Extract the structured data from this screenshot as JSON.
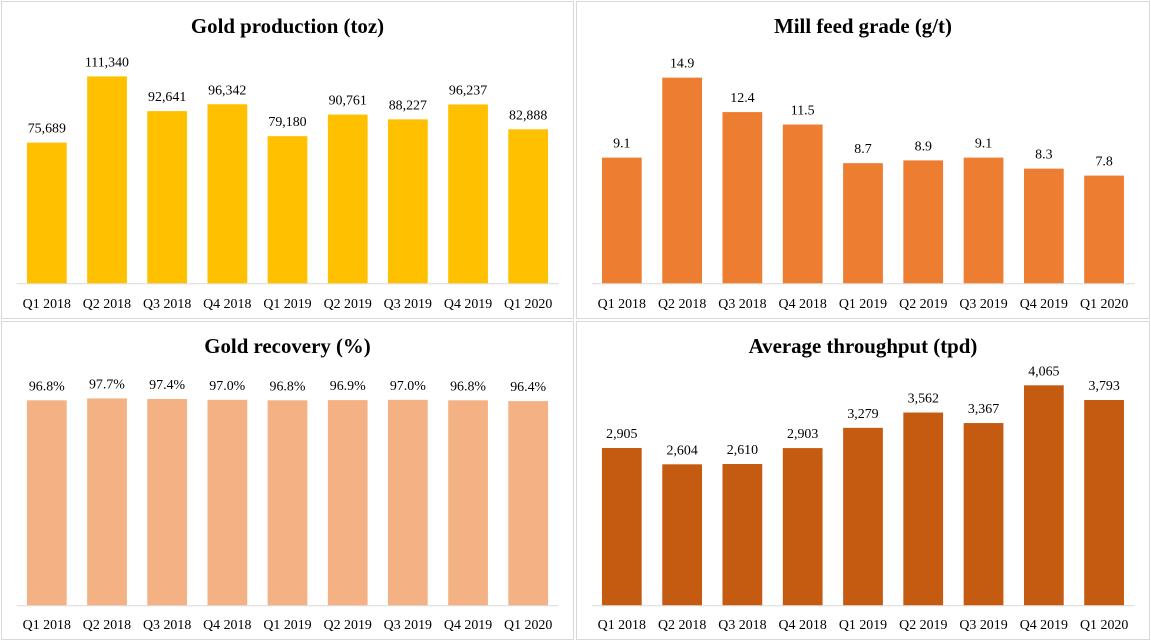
{
  "chart_data": [
    {
      "type": "bar",
      "title": "Gold production (toz)",
      "categories": [
        "Q1 2018",
        "Q2 2018",
        "Q3 2018",
        "Q4 2018",
        "Q1 2019",
        "Q2 2019",
        "Q3 2019",
        "Q4 2019",
        "Q1 2020"
      ],
      "values": [
        75689,
        111340,
        92641,
        96342,
        79180,
        90761,
        88227,
        96237,
        82888
      ],
      "labels": [
        "75,689",
        "111,340",
        "92,641",
        "96,342",
        "79,180",
        "90,761",
        "88,227",
        "96,237",
        "82,888"
      ],
      "color": "#FFC000",
      "ylim": [
        0,
        130000
      ],
      "grid": false,
      "legend": "none"
    },
    {
      "type": "bar",
      "title": "Mill feed grade (g/t)",
      "categories": [
        "Q1 2018",
        "Q2 2018",
        "Q3 2018",
        "Q4 2018",
        "Q1 2019",
        "Q2 2019",
        "Q3 2019",
        "Q4 2019",
        "Q1 2020"
      ],
      "values": [
        9.1,
        14.9,
        12.4,
        11.5,
        8.7,
        8.9,
        9.1,
        8.3,
        7.8
      ],
      "labels": [
        "9.1",
        "14.9",
        "12.4",
        "11.5",
        "8.7",
        "8.9",
        "9.1",
        "8.3",
        "7.8"
      ],
      "color": "#ED7D31",
      "ylim": [
        0,
        17.5
      ],
      "grid": false,
      "legend": "none"
    },
    {
      "type": "bar",
      "title": "Gold recovery (%)",
      "categories": [
        "Q1 2018",
        "Q2 2018",
        "Q3 2018",
        "Q4 2018",
        "Q1 2019",
        "Q2 2019",
        "Q3 2019",
        "Q4 2019",
        "Q1 2020"
      ],
      "values": [
        96.8,
        97.7,
        97.4,
        97.0,
        96.8,
        96.9,
        97.0,
        96.8,
        96.4
      ],
      "labels": [
        "96.8%",
        "97.7%",
        "97.4%",
        "97.0%",
        "96.8%",
        "96.9%",
        "97.0%",
        "96.8%",
        "96.4%"
      ],
      "color": "#F4B183",
      "ylim": [
        0,
        115
      ],
      "grid": false,
      "legend": "none"
    },
    {
      "type": "bar",
      "title": "Average throughput (tpd)",
      "categories": [
        "Q1 2018",
        "Q2 2018",
        "Q3 2018",
        "Q4 2018",
        "Q1 2019",
        "Q2 2019",
        "Q3 2019",
        "Q4 2019",
        "Q1 2020"
      ],
      "values": [
        2905,
        2604,
        2610,
        2903,
        3279,
        3562,
        3367,
        4065,
        3793
      ],
      "labels": [
        "2,905",
        "2,604",
        "2,610",
        "2,903",
        "3,279",
        "3,562",
        "3,367",
        "4,065",
        "3,793"
      ],
      "color": "#C55A11",
      "ylim": [
        0,
        4500
      ],
      "grid": false,
      "legend": "none"
    }
  ]
}
